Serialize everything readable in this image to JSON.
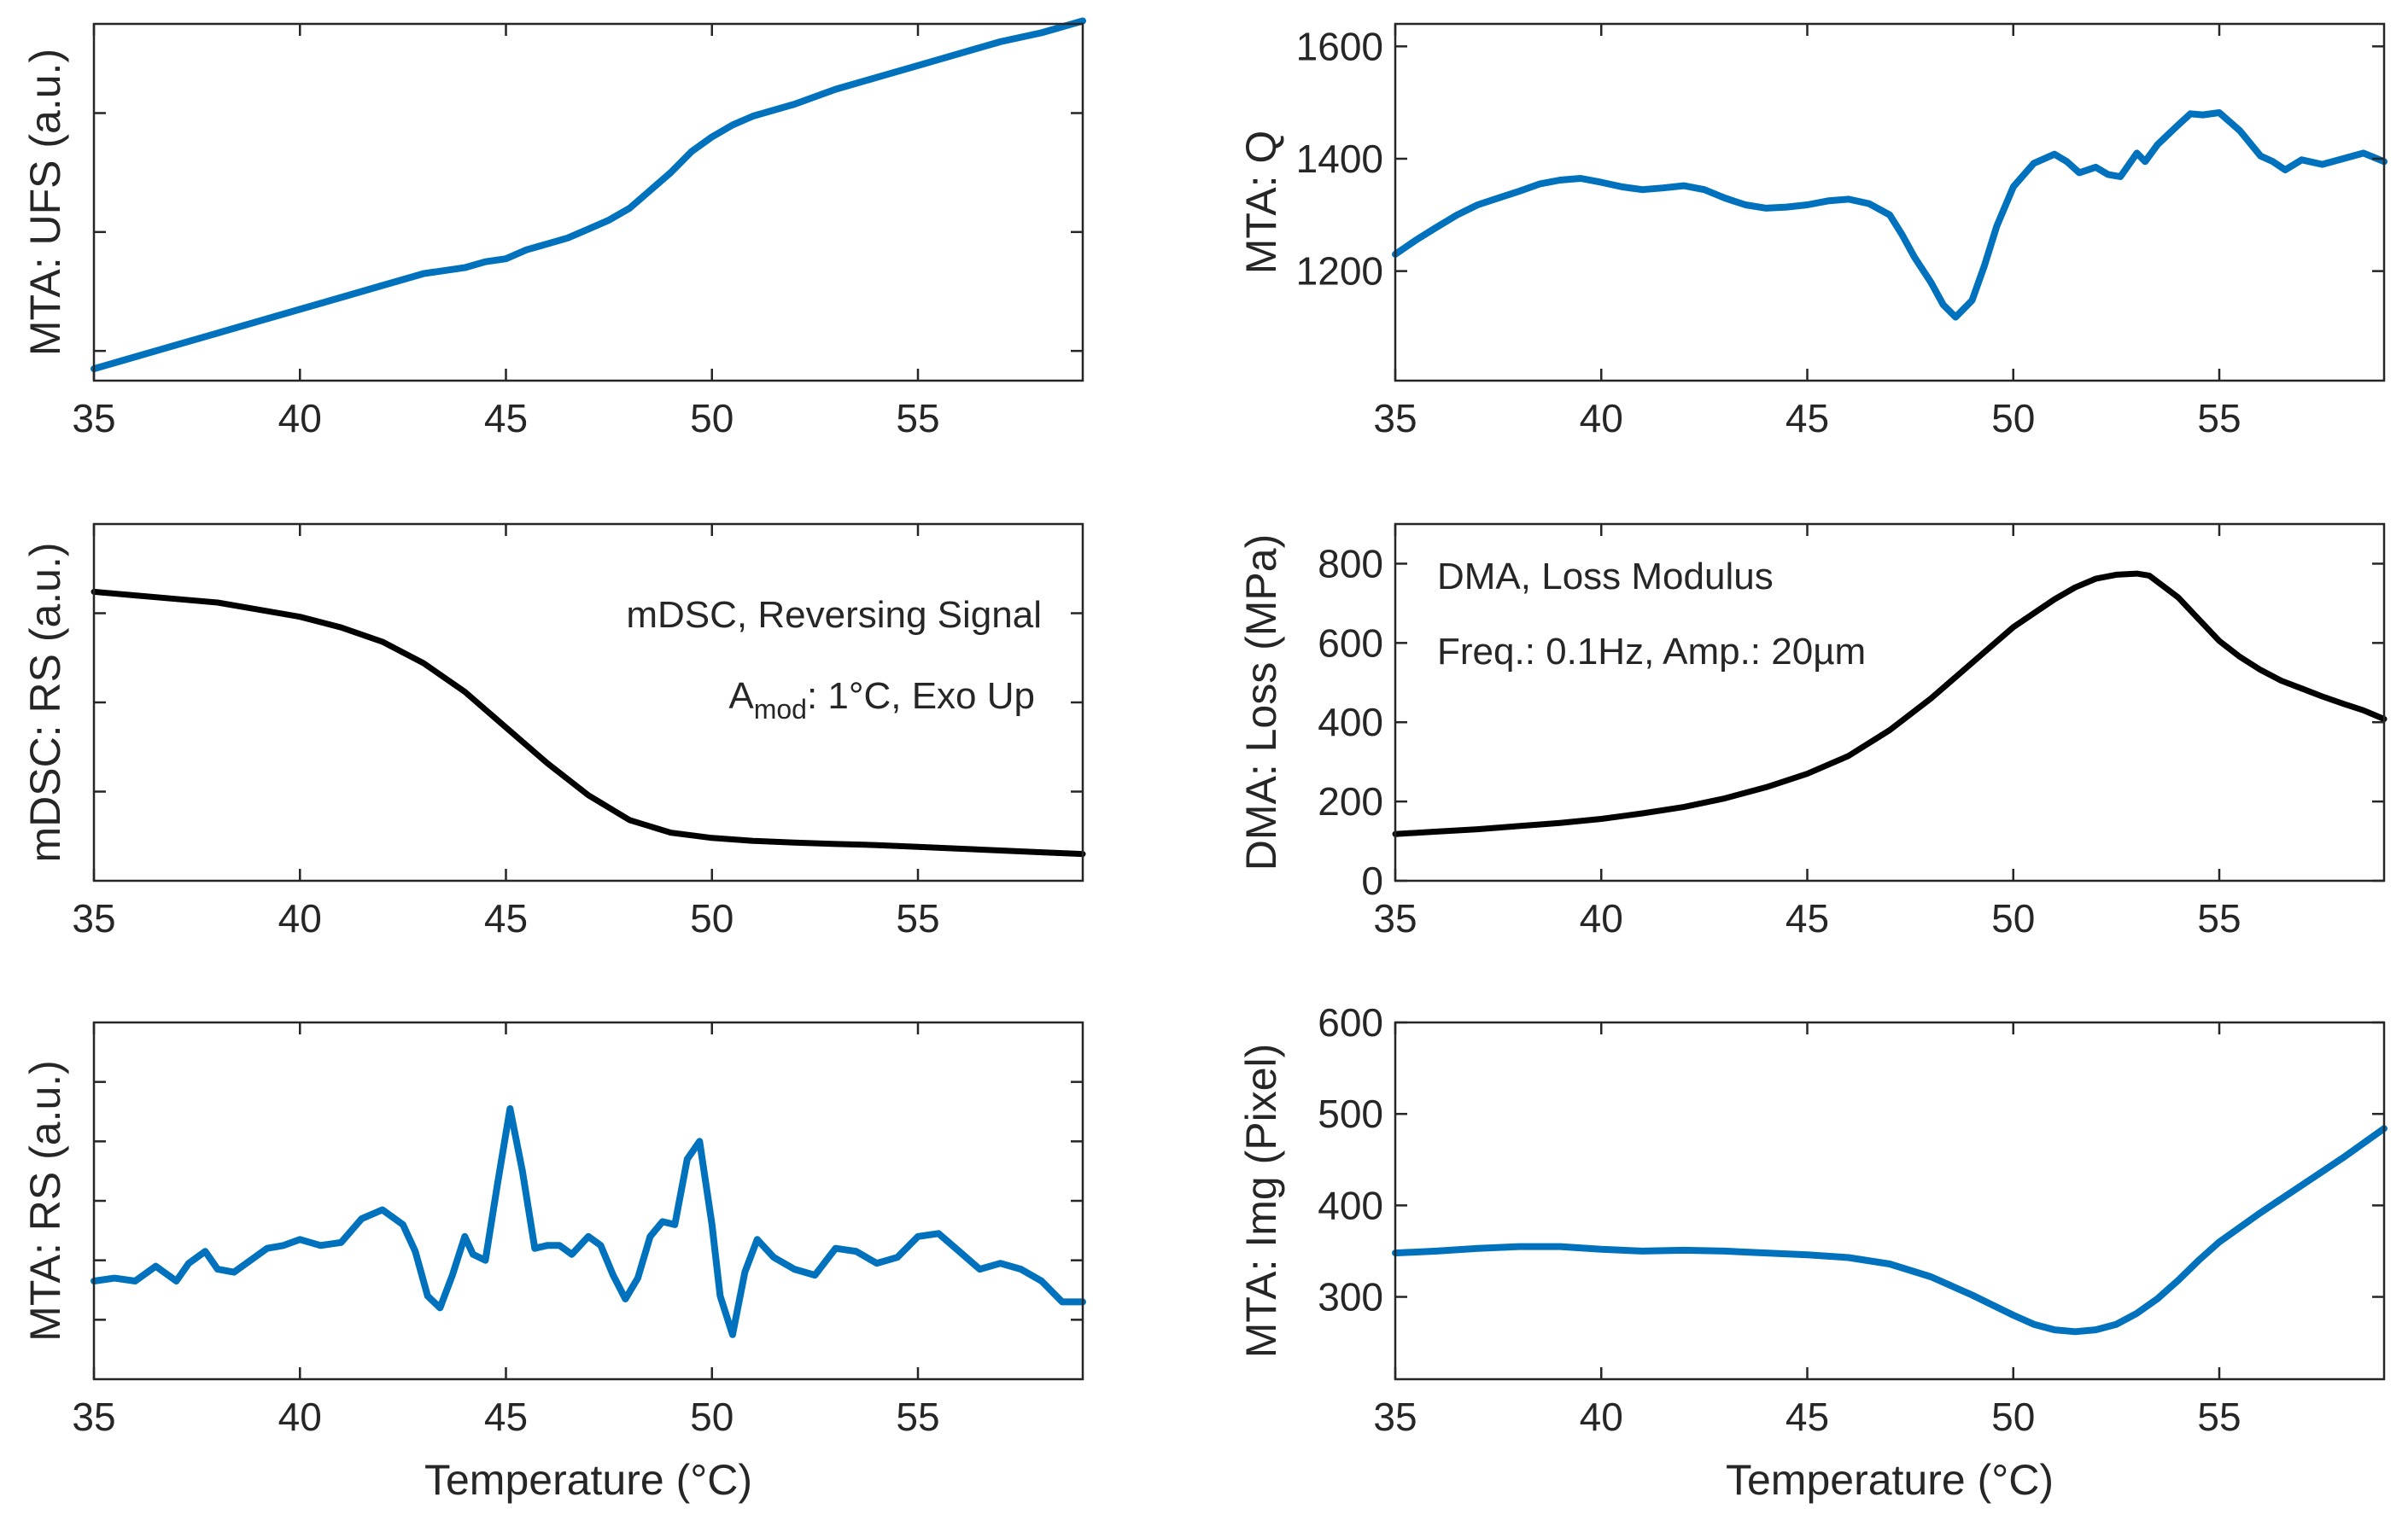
{
  "figure": {
    "xlabel_bottom": "Temperature (°C)"
  },
  "chart_data": [
    {
      "type": "line",
      "ylabel": "MTA: UFS (a.u.)",
      "xlim": [
        35,
        59
      ],
      "ylim": [
        0,
        1.2
      ],
      "xticks": [
        35,
        40,
        45,
        50,
        55
      ],
      "yticks": [
        0.1,
        0.5,
        0.9
      ],
      "ytick_labels": false,
      "color": "#0072BD",
      "series": [
        {
          "x": [
            35,
            36,
            37,
            38,
            39,
            40,
            41,
            42,
            43,
            44,
            44.5,
            45,
            45.5,
            46,
            46.5,
            47,
            47.5,
            48,
            48.5,
            49,
            49.5,
            50,
            50.5,
            51,
            52,
            53,
            54,
            55,
            56,
            57,
            58,
            59
          ],
          "y": [
            0.04,
            0.08,
            0.12,
            0.16,
            0.2,
            0.24,
            0.28,
            0.32,
            0.36,
            0.38,
            0.4,
            0.41,
            0.44,
            0.46,
            0.48,
            0.51,
            0.54,
            0.58,
            0.64,
            0.7,
            0.77,
            0.82,
            0.86,
            0.89,
            0.93,
            0.98,
            1.02,
            1.06,
            1.1,
            1.14,
            1.17,
            1.21
          ]
        }
      ]
    },
    {
      "type": "line",
      "ylabel": "MTA: Q",
      "xlim": [
        35,
        59
      ],
      "ylim": [
        1005,
        1640
      ],
      "xticks": [
        35,
        40,
        45,
        50,
        55
      ],
      "yticks": [
        1200,
        1400,
        1600
      ],
      "ytick_labels": true,
      "color": "#0072BD",
      "series": [
        {
          "x": [
            35,
            35.5,
            36,
            36.5,
            37,
            37.5,
            38,
            38.5,
            39,
            39.5,
            40,
            40.5,
            41,
            41.5,
            42,
            42.5,
            43,
            43.5,
            44,
            44.5,
            45,
            45.5,
            46,
            46.5,
            47,
            47.3,
            47.6,
            48,
            48.3,
            48.6,
            49,
            49.3,
            49.6,
            50,
            50.5,
            51,
            51.3,
            51.6,
            52,
            52.3,
            52.6,
            53,
            53.2,
            53.5,
            54,
            54.3,
            54.6,
            55,
            55.5,
            56,
            56.3,
            56.6,
            57,
            57.5,
            58,
            58.5,
            59
          ],
          "y": [
            1230,
            1255,
            1278,
            1300,
            1318,
            1330,
            1342,
            1355,
            1362,
            1365,
            1358,
            1350,
            1345,
            1348,
            1352,
            1345,
            1330,
            1318,
            1312,
            1314,
            1318,
            1325,
            1328,
            1320,
            1300,
            1265,
            1225,
            1180,
            1140,
            1118,
            1148,
            1210,
            1280,
            1350,
            1392,
            1408,
            1395,
            1375,
            1385,
            1372,
            1368,
            1410,
            1395,
            1425,
            1460,
            1480,
            1478,
            1482,
            1450,
            1405,
            1395,
            1380,
            1398,
            1390,
            1400,
            1410,
            1395
          ]
        }
      ]
    },
    {
      "type": "line",
      "ylabel": "mDSC: RS (a.u.)",
      "xlim": [
        35,
        59
      ],
      "ylim": [
        0,
        1.0
      ],
      "xticks": [
        35,
        40,
        45,
        50,
        55
      ],
      "yticks": [
        0.25,
        0.5,
        0.75
      ],
      "ytick_labels": false,
      "color": "#000000",
      "annotations": {
        "line1": "mDSC, Reversing Signal",
        "line2_main": "A",
        "line2_sub": "mod",
        "line2_rest": ": 1°C, Exo Up"
      },
      "series": [
        {
          "x": [
            35,
            36,
            37,
            38,
            39,
            40,
            41,
            42,
            43,
            44,
            45,
            46,
            47,
            48,
            49,
            50,
            51,
            52,
            53,
            54,
            55,
            56,
            57,
            58,
            59
          ],
          "y": [
            0.81,
            0.8,
            0.79,
            0.78,
            0.76,
            0.74,
            0.71,
            0.67,
            0.61,
            0.53,
            0.43,
            0.33,
            0.24,
            0.17,
            0.135,
            0.12,
            0.112,
            0.107,
            0.103,
            0.1,
            0.095,
            0.09,
            0.085,
            0.08,
            0.075
          ]
        }
      ]
    },
    {
      "type": "line",
      "ylabel": "DMA: Loss (MPa)",
      "xlim": [
        35,
        59
      ],
      "ylim": [
        0,
        900
      ],
      "xticks": [
        35,
        40,
        45,
        50,
        55
      ],
      "yticks": [
        0,
        200,
        400,
        600,
        800
      ],
      "ytick_labels": true,
      "color": "#000000",
      "annotations": {
        "line1": "DMA, Loss Modulus",
        "line2": "Freq.: 0.1Hz, Amp.: 20µm"
      },
      "series": [
        {
          "x": [
            35,
            36,
            37,
            38,
            39,
            40,
            41,
            42,
            43,
            44,
            45,
            46,
            47,
            48,
            49,
            50,
            51,
            51.5,
            52,
            52.5,
            53,
            53.3,
            54,
            54.5,
            55,
            55.5,
            56,
            56.5,
            57,
            57.5,
            58,
            58.5,
            59
          ],
          "y": [
            118,
            124,
            130,
            138,
            146,
            156,
            170,
            186,
            208,
            236,
            270,
            315,
            380,
            460,
            550,
            640,
            710,
            740,
            762,
            772,
            775,
            770,
            715,
            660,
            605,
            565,
            532,
            505,
            485,
            465,
            447,
            430,
            408
          ]
        }
      ]
    },
    {
      "type": "line",
      "ylabel": "MTA: RS (a.u.)",
      "xlabel": "Temperature (°C)",
      "xlim": [
        35,
        59
      ],
      "ylim": [
        0,
        1.2
      ],
      "xticks": [
        35,
        40,
        45,
        50,
        55
      ],
      "yticks": [
        0.2,
        0.4,
        0.6,
        0.8,
        1.0
      ],
      "ytick_labels": false,
      "color": "#0072BD",
      "series": [
        {
          "x": [
            35,
            35.5,
            36,
            36.5,
            37,
            37.3,
            37.7,
            38,
            38.4,
            38.8,
            39.2,
            39.6,
            40,
            40.5,
            41,
            41.5,
            42,
            42.5,
            42.8,
            43.1,
            43.4,
            43.7,
            44,
            44.2,
            44.5,
            44.8,
            45.1,
            45.4,
            45.7,
            46,
            46.3,
            46.6,
            47,
            47.3,
            47.6,
            47.9,
            48.2,
            48.5,
            48.8,
            49.1,
            49.4,
            49.7,
            50,
            50.2,
            50.5,
            50.8,
            51.1,
            51.5,
            52,
            52.5,
            53,
            53.5,
            54,
            54.5,
            55,
            55.5,
            56,
            56.5,
            57,
            57.5,
            58,
            58.5,
            59
          ],
          "y": [
            0.33,
            0.34,
            0.33,
            0.38,
            0.33,
            0.39,
            0.43,
            0.37,
            0.36,
            0.4,
            0.44,
            0.45,
            0.47,
            0.45,
            0.46,
            0.54,
            0.57,
            0.52,
            0.43,
            0.28,
            0.24,
            0.35,
            0.48,
            0.42,
            0.4,
            0.66,
            0.91,
            0.7,
            0.44,
            0.45,
            0.45,
            0.42,
            0.48,
            0.45,
            0.35,
            0.27,
            0.34,
            0.48,
            0.53,
            0.52,
            0.74,
            0.8,
            0.52,
            0.28,
            0.15,
            0.36,
            0.47,
            0.41,
            0.37,
            0.35,
            0.44,
            0.43,
            0.39,
            0.41,
            0.48,
            0.49,
            0.43,
            0.37,
            0.39,
            0.37,
            0.33,
            0.26,
            0.26
          ]
        }
      ]
    },
    {
      "type": "line",
      "ylabel": "MTA: Img (Pixel)",
      "xlabel": "Temperature (°C)",
      "xlim": [
        35,
        59
      ],
      "ylim": [
        210,
        600
      ],
      "xticks": [
        35,
        40,
        45,
        50,
        55
      ],
      "yticks": [
        300,
        400,
        500,
        600
      ],
      "ytick_labels": true,
      "color": "#0072BD",
      "series": [
        {
          "x": [
            35,
            36,
            37,
            38,
            39,
            40,
            41,
            42,
            43,
            44,
            45,
            46,
            47,
            48,
            49,
            50,
            50.5,
            51,
            51.5,
            52,
            52.5,
            53,
            53.5,
            54,
            54.5,
            55,
            56,
            57,
            58,
            59
          ],
          "y": [
            348,
            350,
            353,
            355,
            355,
            352,
            350,
            351,
            350,
            348,
            346,
            343,
            336,
            322,
            302,
            280,
            270,
            264,
            262,
            264,
            270,
            282,
            298,
            318,
            340,
            360,
            392,
            422,
            452,
            484
          ]
        }
      ]
    }
  ]
}
